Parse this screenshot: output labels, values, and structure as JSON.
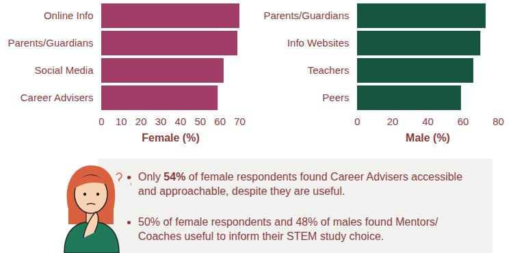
{
  "chart_data": [
    {
      "type": "bar",
      "orientation": "horizontal",
      "categories": [
        "Online Info",
        "Parents/Guardians",
        "Social Media",
        "Career Advisers"
      ],
      "values": [
        70,
        69,
        62,
        59
      ],
      "color": "#a23c69",
      "xlabel": "Female (%)",
      "xlim": [
        0,
        70
      ],
      "xticks": [
        0,
        10,
        20,
        30,
        40,
        50,
        60,
        70
      ]
    },
    {
      "type": "bar",
      "orientation": "horizontal",
      "categories": [
        "Parents/Guardians",
        "Info Websites",
        "Teachers",
        "Peers"
      ],
      "values": [
        73,
        70,
        66,
        59
      ],
      "color": "#145440",
      "xlabel": "Male (%)",
      "xlim": [
        0,
        80
      ],
      "xticks": [
        0,
        20,
        40,
        60,
        80
      ]
    }
  ],
  "notes": [
    [
      {
        "text": "Only "
      },
      {
        "text": "54%",
        "bold": true
      },
      {
        "text": " of female respondents found Career Advisers accessible and approachable, despite they are useful."
      }
    ],
    [
      {
        "text": "50% of female respondents and 48% of males found Mentors/ Coaches useful to inform their STEM study choice."
      }
    ]
  ]
}
